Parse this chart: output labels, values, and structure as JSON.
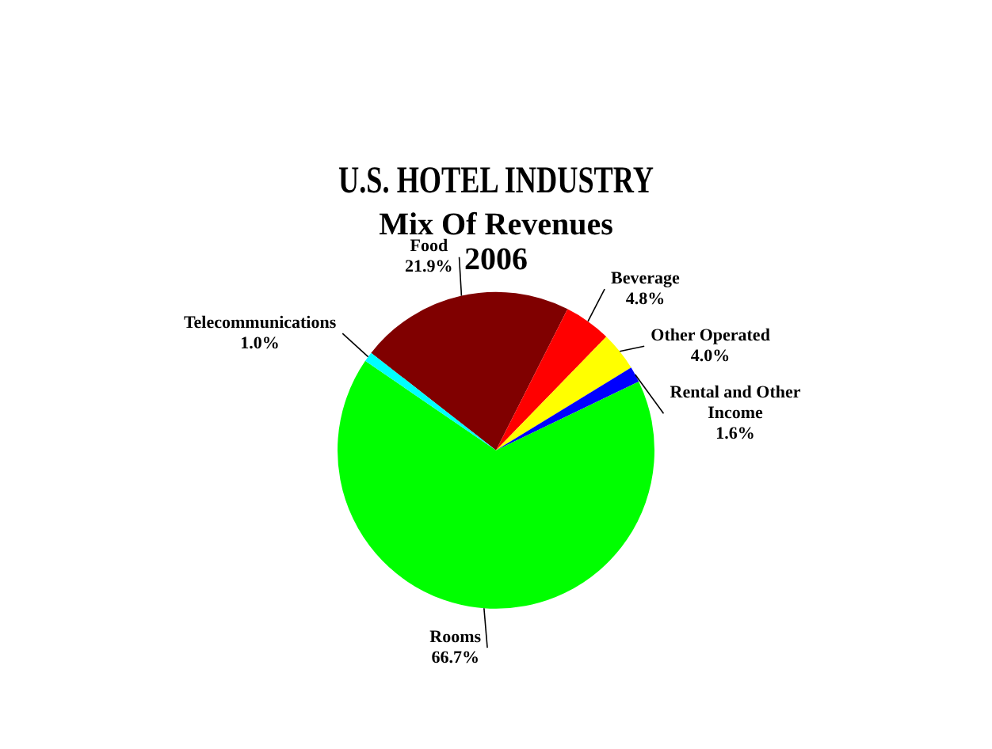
{
  "chart_data": {
    "type": "pie",
    "title": "U.S. HOTEL INDUSTRY",
    "subtitle": "Mix Of Revenues\n2006",
    "categories": [
      "Food",
      "Beverage",
      "Other Operated",
      "Rental and Other Income",
      "Rooms",
      "Telecommunications"
    ],
    "values": [
      21.9,
      4.8,
      4.0,
      1.6,
      66.7,
      1.0
    ],
    "colors": [
      "#800000",
      "#ff0000",
      "#ffff00",
      "#0000ff",
      "#00ff00",
      "#00ffff"
    ],
    "value_labels": [
      "21.9%",
      "4.8%",
      "4.0%",
      "1.6%",
      "66.7%",
      "1.0%"
    ],
    "legend": false
  }
}
